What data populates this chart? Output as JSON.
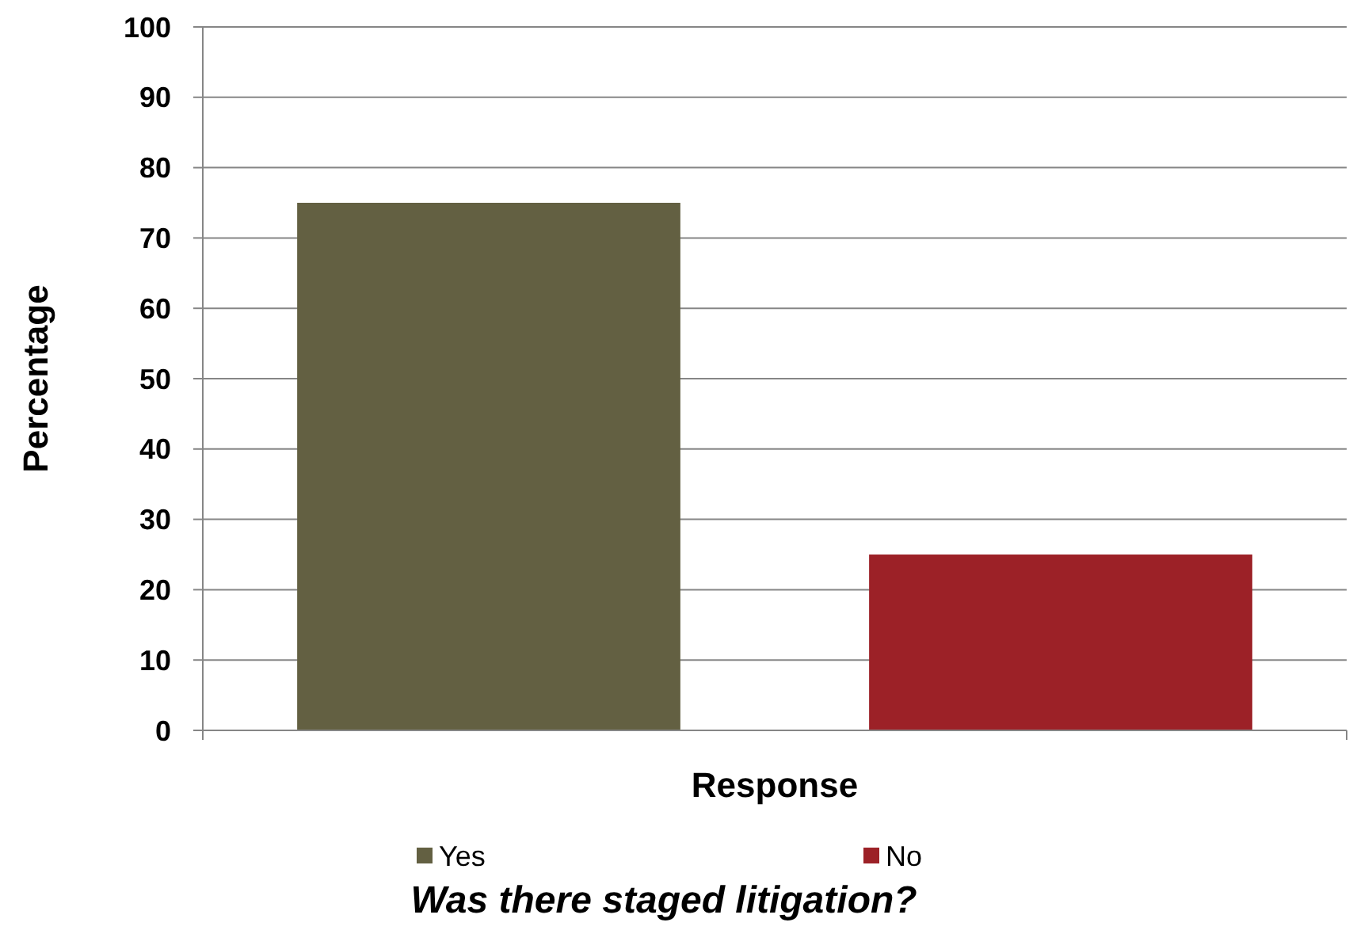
{
  "chart_data": {
    "type": "bar",
    "title": "Was there staged litigation?",
    "xlabel": "Response",
    "ylabel": "Percentage",
    "categories": [
      null
    ],
    "series": [
      {
        "name": "Yes",
        "color": "#636042",
        "values": [
          75
        ]
      },
      {
        "name": "No",
        "color": "#9c2127",
        "values": [
          25
        ]
      }
    ],
    "ylim": [
      0,
      100
    ],
    "yticks": [
      0,
      10,
      20,
      30,
      40,
      50,
      60,
      70,
      80,
      90,
      100
    ],
    "grid": "y",
    "legend": "bottom"
  }
}
